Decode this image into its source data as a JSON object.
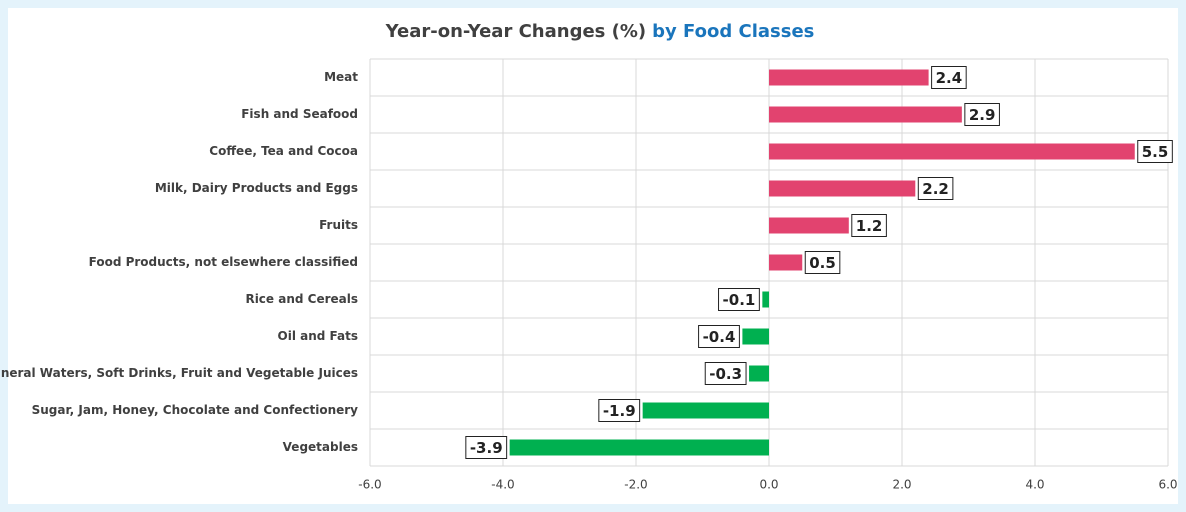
{
  "chart_data": {
    "type": "barh",
    "title": {
      "text": "Year-on-Year Changes (%)",
      "emphasis": "by Food Classes"
    },
    "categories": [
      "Meat",
      "Fish and Seafood",
      "Coffee, Tea and Cocoa",
      "Milk, Dairy Products and Eggs",
      "Fruits",
      "Food Products, not elsewhere classified",
      "Rice and Cereals",
      "Oil and Fats",
      "Mineral Waters, Soft Drinks, Fruit and Vegetable Juices",
      "Sugar, Jam, Honey, Chocolate and Confectionery",
      "Vegetables"
    ],
    "values": [
      2.4,
      2.9,
      5.5,
      2.2,
      1.2,
      0.5,
      -0.1,
      -0.4,
      -0.3,
      -1.9,
      -3.9
    ],
    "positive_color": "#e2436f",
    "negative_color": "#00b050",
    "xlim": [
      -6,
      6
    ],
    "xticks": [
      {
        "value": -6,
        "label": "-6.0"
      },
      {
        "value": -4,
        "label": "-4.0"
      },
      {
        "value": -2,
        "label": "-2.0"
      },
      {
        "value": 0,
        "label": "0.0"
      },
      {
        "value": 2,
        "label": "2.0"
      },
      {
        "value": 4,
        "label": "4.0"
      },
      {
        "value": 6,
        "label": "6.0"
      }
    ],
    "grid": true
  }
}
